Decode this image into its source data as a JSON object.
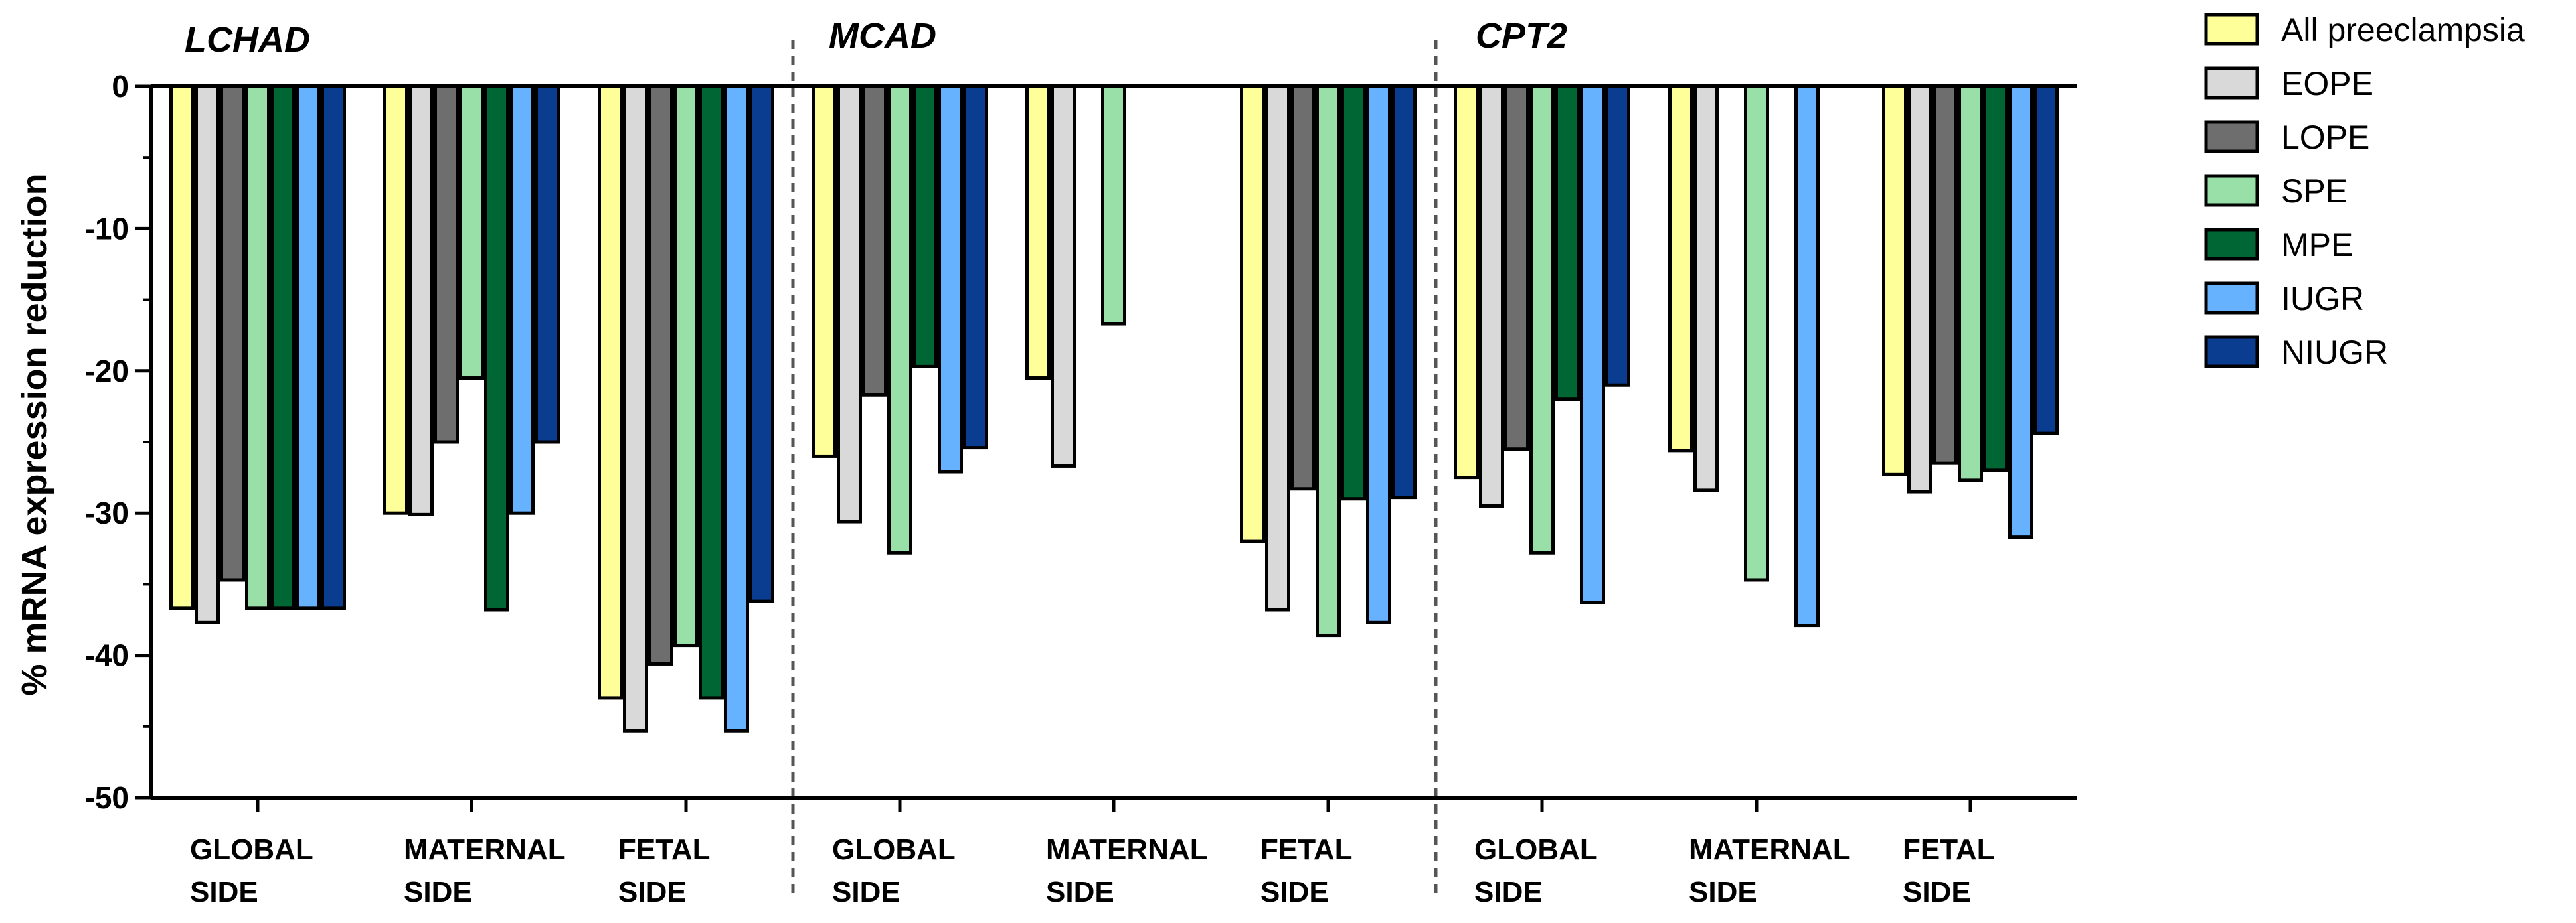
{
  "chart_data": {
    "type": "bar",
    "ylabel": "% mRNA expression reduction",
    "ylim": [
      -50,
      0
    ],
    "yticks": [
      0,
      -10,
      -20,
      -30,
      -40,
      -50
    ],
    "genes": [
      "LCHAD",
      "MCAD",
      "CPT2"
    ],
    "categories": [
      [
        "GLOBAL",
        "SIDE"
      ],
      [
        "MATERNAL",
        "SIDE"
      ],
      [
        "FETAL",
        "SIDE"
      ],
      [
        "GLOBAL",
        "SIDE"
      ],
      [
        "MATERNAL",
        "SIDE"
      ],
      [
        "FETAL",
        "SIDE"
      ],
      [
        "GLOBAL",
        "SIDE"
      ],
      [
        "MATERNAL",
        "SIDE"
      ],
      [
        "FETAL",
        "SIDE"
      ]
    ],
    "legend_position": "top-right",
    "series": [
      {
        "name": "All preeclampsia",
        "color": "#ffff99",
        "values": [
          -36.7,
          -30.0,
          -43.0,
          -26.0,
          -20.5,
          -32.0,
          -27.5,
          -25.6,
          -27.3
        ]
      },
      {
        "name": "EOPE",
        "color": "#d9d9d9",
        "values": [
          -37.7,
          -30.1,
          -45.3,
          -30.6,
          -26.7,
          -36.8,
          -29.5,
          -28.4,
          -28.5
        ]
      },
      {
        "name": "LOPE",
        "color": "#6e6e6e",
        "values": [
          -34.7,
          -25.0,
          -40.6,
          -21.7,
          null,
          -28.3,
          -25.5,
          null,
          -26.5
        ]
      },
      {
        "name": "SPE",
        "color": "#99e0a8",
        "values": [
          -36.7,
          -20.5,
          -39.3,
          -32.8,
          -16.7,
          -38.6,
          -32.8,
          -34.7,
          -27.7
        ]
      },
      {
        "name": "MPE",
        "color": "#006633",
        "values": [
          -36.7,
          -36.8,
          -43.0,
          -19.7,
          null,
          -29.0,
          -22.0,
          null,
          -27.0
        ]
      },
      {
        "name": "IUGR",
        "color": "#66b2ff",
        "values": [
          -36.7,
          -30.0,
          -45.3,
          -27.1,
          null,
          -37.7,
          -36.3,
          -37.9,
          -31.7
        ]
      },
      {
        "name": "NIUGR",
        "color": "#0a3d8f",
        "values": [
          -36.7,
          -25.0,
          -36.2,
          -25.4,
          null,
          -28.9,
          -21.0,
          null,
          -24.4
        ]
      }
    ]
  }
}
